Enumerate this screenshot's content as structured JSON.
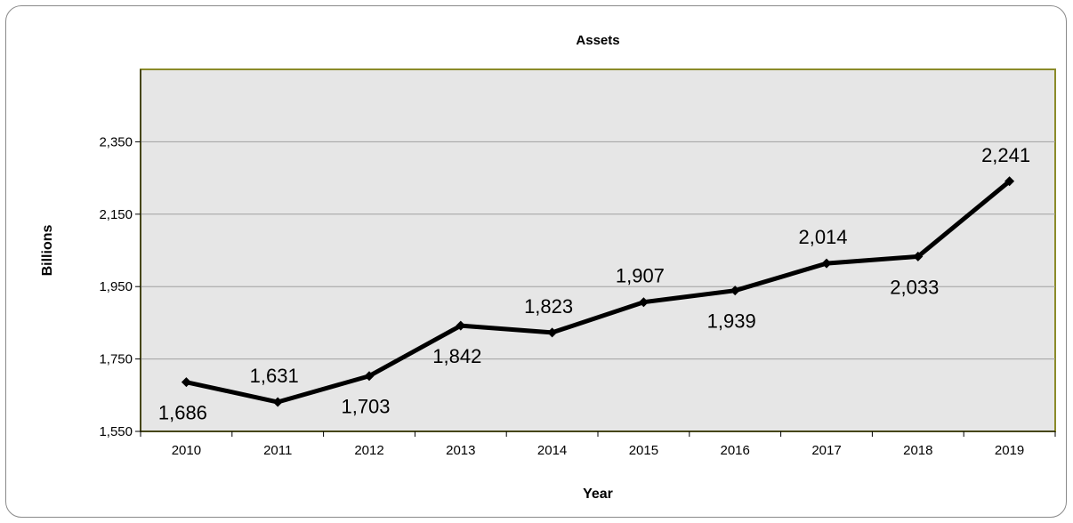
{
  "chart_data": {
    "type": "line",
    "title": "Assets",
    "xlabel": "Year",
    "ylabel": "Billions",
    "categories": [
      "2010",
      "2011",
      "2012",
      "2013",
      "2014",
      "2015",
      "2016",
      "2017",
      "2018",
      "2019"
    ],
    "values": [
      1686,
      1631,
      1703,
      1842,
      1823,
      1907,
      1939,
      2014,
      2033,
      2241
    ],
    "data_labels": [
      "1,686",
      "1,631",
      "1,703",
      "1,842",
      "1,823",
      "1,907",
      "1,939",
      "2,014",
      "2,033",
      "2,241"
    ],
    "ylim": [
      1550,
      2550
    ],
    "yticks": [
      1550,
      1750,
      1950,
      2150,
      2350
    ],
    "ytick_labels": [
      "1,550",
      "1,750",
      "1,950",
      "2,150",
      "2,350"
    ],
    "grid": true,
    "legend": "none",
    "colors": {
      "plot_background": "#e6e6e6",
      "plot_border": "#8b8b2a",
      "line": "#000000",
      "gridline": "#a0a0a0"
    }
  }
}
